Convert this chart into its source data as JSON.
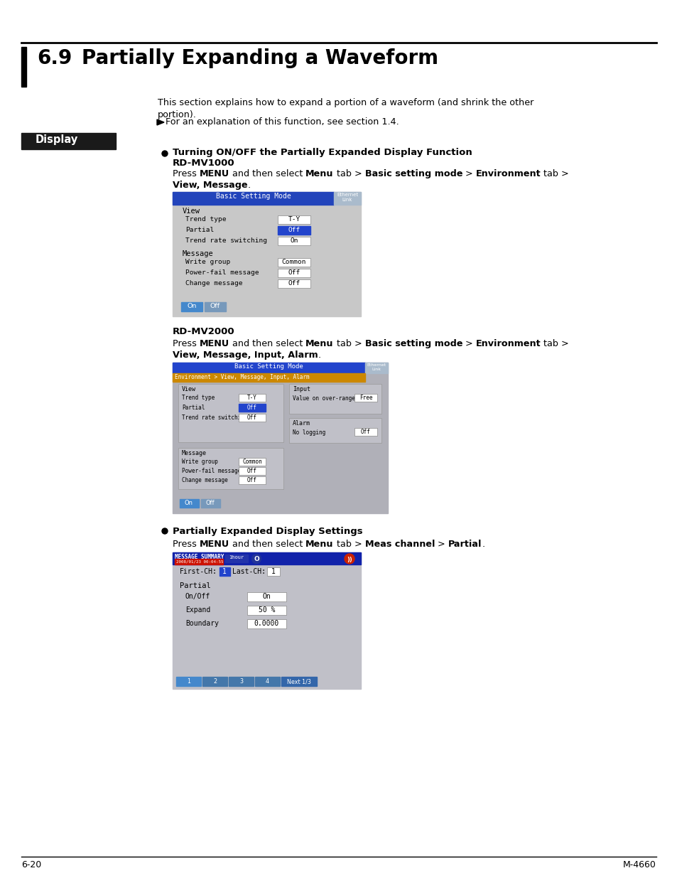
{
  "page_bg": "#ffffff",
  "footer_left": "6-20",
  "footer_right": "M-4660",
  "title": "6.9    Partially Expanding a Waveform",
  "display_bar_color": "#1a1a1a",
  "screen1_bg": "#c8c8c8",
  "screen1_title_bg": "#2244bb",
  "screen2_bg": "#b8b8b8",
  "screen2_title_bg": "#2244cc",
  "screen2_orange": "#cc8800",
  "screen3_bg": "#c0c0c0",
  "screen3_header_bg": "#1122aa",
  "highlight_blue": "#2244cc",
  "btn_on_color": "#4488cc",
  "btn_off_color": "#7799bb"
}
